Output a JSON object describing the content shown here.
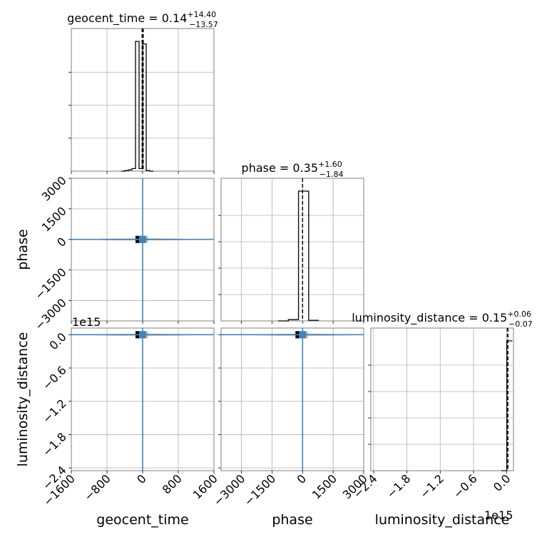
{
  "chart_data": {
    "type": "corner",
    "parameters": [
      "geocent_time",
      "phase",
      "luminosity_distance"
    ],
    "titles": {
      "geocent_time": {
        "label": "geocent_time",
        "median": "0.14",
        "plus": "+14.40",
        "minus": "−13.57"
      },
      "phase": {
        "label": "phase",
        "median": "0.35",
        "plus": "+1.60",
        "minus": "−1.84"
      },
      "luminosity_distance": {
        "label": "luminosity_distance",
        "median": "0.15",
        "plus": "+0.06",
        "minus": "−0.07"
      }
    },
    "axis_offset_label": "1e15",
    "ranges": {
      "geocent_time": [
        -1600,
        1600
      ],
      "phase": [
        -4000,
        3000
      ],
      "luminosity_distance": [
        -2.45,
        0.12
      ]
    },
    "ticks": {
      "geocent_time": {
        "values": [
          -1600,
          -800,
          0,
          800,
          1600
        ],
        "labels": [
          "−1600",
          "−800",
          "0",
          "800",
          "1600"
        ]
      },
      "phase_x": {
        "values": [
          -3000,
          -1500,
          0,
          1500,
          3000
        ],
        "labels": [
          "−3000",
          "−1500",
          "0",
          "1500",
          "3000"
        ]
      },
      "phase_y": {
        "values": [
          3000,
          1500,
          0,
          -1500,
          -3000
        ],
        "labels": [
          "3000",
          "1500",
          "0",
          "−1500",
          "−3000"
        ]
      },
      "luminosity_distance": {
        "values": [
          -2.4,
          -1.8,
          -1.2,
          -0.6,
          0.0
        ],
        "labels": [
          "−2.4",
          "−1.8",
          "−1.2",
          "−0.6",
          "0.0"
        ]
      }
    },
    "histograms": {
      "geocent_time": {
        "edges": [
          -480,
          -400,
          -320,
          -240,
          -160,
          -80,
          0,
          80,
          160,
          240
        ],
        "counts": [
          0.0,
          0.005,
          0.01,
          0.02,
          1.0,
          0.02,
          0.98,
          0.005,
          0.0
        ]
      },
      "phase": {
        "edges": [
          -1200,
          -700,
          -200,
          300,
          800
        ],
        "counts": [
          0.0,
          0.01,
          1.0,
          0.005
        ]
      },
      "luminosity_distance": {
        "edges": [
          -0.1,
          -0.05,
          0.0,
          0.05,
          0.1
        ],
        "counts": [
          0.0,
          0.0,
          1.0,
          1.0
        ]
      }
    },
    "quantile_lines": {
      "geocent_time": [
        -13.43,
        0.14,
        14.54
      ],
      "phase": [
        -1.49,
        0.35,
        1.95
      ],
      "luminosity_distance": [
        0.08,
        0.15,
        0.21
      ]
    },
    "truths": {
      "geocent_time": 0,
      "phase": 0,
      "luminosity_distance": 0
    },
    "truth_color": "#4682b4",
    "grid": true
  }
}
